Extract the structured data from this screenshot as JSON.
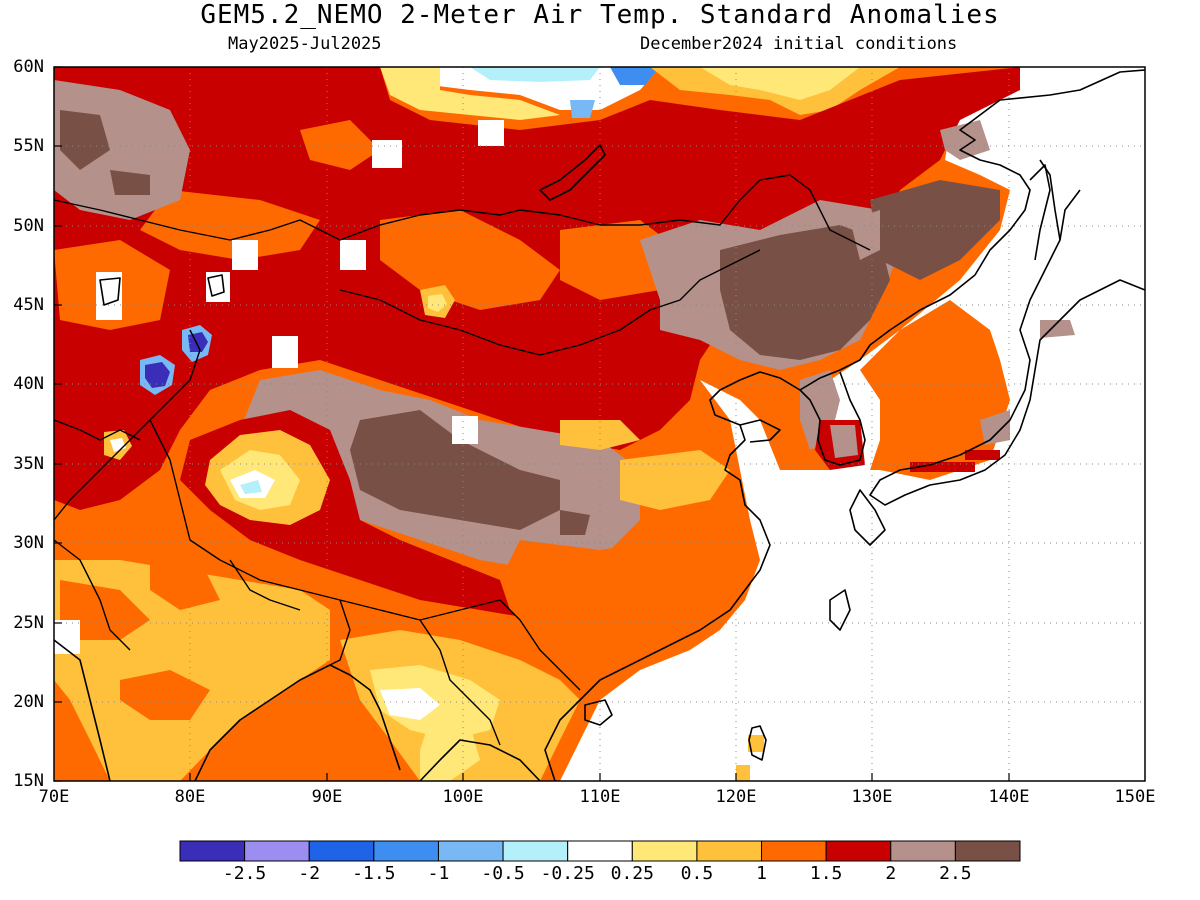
{
  "title": "GEM5.2_NEMO 2-Meter Air Temp. Standard Anomalies",
  "period": "May2025-Jul2025",
  "init": "December2024 initial conditions",
  "latitudes": [
    "60N",
    "55N",
    "50N",
    "45N",
    "40N",
    "35N",
    "30N",
    "25N",
    "20N",
    "15N"
  ],
  "longitudes": [
    "70E",
    "80E",
    "90E",
    "100E",
    "110E",
    "120E",
    "130E",
    "140E",
    "150E"
  ],
  "colorbar": {
    "colors": [
      "#3a2db8",
      "#9b8ef0",
      "#1f63e6",
      "#3d8ef0",
      "#78b8f5",
      "#b4f0fa",
      "#ffffff",
      "#ffe878",
      "#ffc03c",
      "#ff6a00",
      "#c80000",
      "#b4918a",
      "#785046"
    ],
    "labels": [
      "-2.5",
      "-2",
      "-1.5",
      "-1",
      "-0.5",
      "-0.25",
      "0.25",
      "0.5",
      "1",
      "1.5",
      "2",
      "2.5"
    ]
  },
  "legend_meaning": {
    "warm_strong": "#785046",
    "warm_2": "#b4918a",
    "warm_1_5": "#c80000",
    "warm_1": "#ff6a00",
    "warm_0_5": "#ffc03c",
    "warm_0_25": "#ffe878",
    "neutral": "#ffffff"
  }
}
